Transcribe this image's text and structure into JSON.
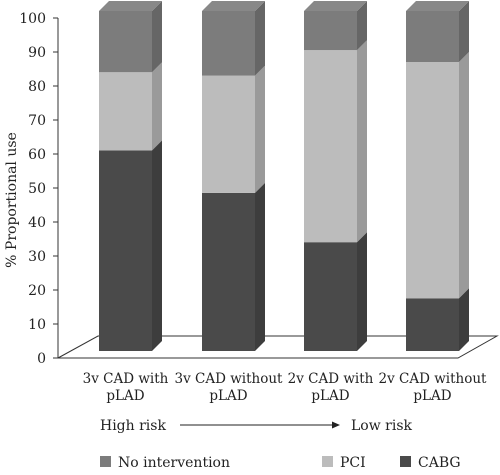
{
  "chart_data": {
    "type": "bar",
    "stacked": true,
    "three_d": true,
    "ylabel": "% Proportional use",
    "ylim": [
      0,
      100
    ],
    "yticks": [
      0,
      10,
      20,
      30,
      40,
      50,
      60,
      70,
      80,
      90,
      100
    ],
    "categories": [
      [
        "3v CAD with",
        "pLAD"
      ],
      [
        "3v CAD without",
        "pLAD"
      ],
      [
        "2v CAD with",
        "pLAD"
      ],
      [
        "2v CAD without",
        "pLAD"
      ]
    ],
    "series": [
      {
        "name": "CABG",
        "color": "#4a4a4a",
        "values": [
          59,
          46.5,
          32,
          15.5
        ]
      },
      {
        "name": "PCI",
        "color": "#bcbcbc",
        "values": [
          23,
          34.5,
          56.5,
          69.5
        ]
      },
      {
        "name": "No intervention",
        "color": "#7c7c7c",
        "values": [
          18,
          19,
          11.5,
          15
        ]
      }
    ],
    "legend_order": [
      "No intervention",
      "PCI",
      "CABG"
    ],
    "legend_position": "bottom",
    "annotation": {
      "left": "High risk",
      "right": "Low risk"
    },
    "grid": false
  }
}
